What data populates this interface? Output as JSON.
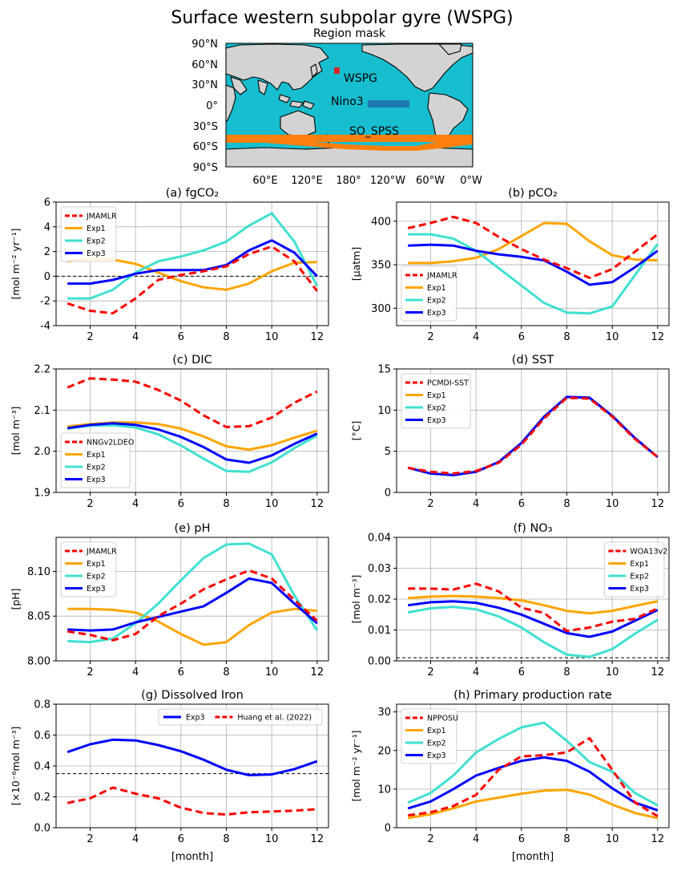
{
  "suptitle": "Surface western subpolar gyre (WSPG)",
  "map": {
    "title": "Region mask",
    "lat_ticks": [
      "90°N",
      "60°N",
      "30°N",
      "0°",
      "30°S",
      "60°S",
      "90°S"
    ],
    "lon_ticks": [
      "60°E",
      "120°E",
      "180°",
      "120°W",
      "60°W",
      "0°W"
    ],
    "region_labels": [
      "WSPG",
      "Nino3",
      "SO_SPSS"
    ],
    "colors": {
      "ocean": "#17becf",
      "land": "#d3d3d3",
      "wspg": "#d62728",
      "nino3": "#1f77b4",
      "so_spss": "#ff7f0e"
    }
  },
  "colors": {
    "obs": "#ff0000",
    "exp1": "#ffa500",
    "exp2": "#40e0d0",
    "exp3": "#0000ff",
    "grid": "#b0b0b0"
  },
  "xlabel": "[month]",
  "chart_data": [
    {
      "id": "a",
      "type": "line",
      "title": "(a) fgCO₂",
      "ylabel": "[mol m⁻² yr⁻¹]",
      "xlim": [
        0.5,
        12.5
      ],
      "ylim": [
        -4,
        6
      ],
      "yticks": [
        -4,
        -2,
        0,
        2,
        4,
        6
      ],
      "xticks": [
        2,
        4,
        6,
        8,
        10,
        12
      ],
      "yfmt": 0,
      "hline": 0,
      "legend": "upper-left",
      "x": [
        1,
        2,
        3,
        4,
        5,
        6,
        7,
        8,
        9,
        10,
        11,
        12
      ],
      "series": [
        {
          "name": "JMAMLR",
          "style": "obs",
          "values": [
            -2.2,
            -2.8,
            -3.0,
            -1.8,
            -0.3,
            0.1,
            0.4,
            0.8,
            1.8,
            2.4,
            1.2,
            -1.2
          ]
        },
        {
          "name": "Exp1",
          "style": "exp1",
          "values": [
            1.2,
            1.4,
            1.35,
            1.0,
            0.3,
            -0.4,
            -0.9,
            -1.1,
            -0.6,
            0.4,
            1.1,
            1.15
          ]
        },
        {
          "name": "Exp2",
          "style": "exp2",
          "values": [
            -1.8,
            -1.8,
            -1.1,
            0.3,
            1.2,
            1.6,
            2.1,
            2.8,
            4.1,
            5.1,
            2.8,
            -0.8
          ]
        },
        {
          "name": "Exp3",
          "style": "exp3",
          "values": [
            -0.6,
            -0.6,
            -0.3,
            0.2,
            0.5,
            0.5,
            0.5,
            0.9,
            2.1,
            2.9,
            1.9,
            0.0
          ]
        }
      ]
    },
    {
      "id": "b",
      "type": "line",
      "title": "(b) pCO₂",
      "ylabel": "[μatm]",
      "xlim": [
        0.5,
        12.5
      ],
      "ylim": [
        280,
        422
      ],
      "yticks": [
        300,
        350,
        400
      ],
      "xticks": [
        2,
        4,
        6,
        8,
        10,
        12
      ],
      "yfmt": 0,
      "hline": null,
      "legend": "lower-left",
      "x": [
        1,
        2,
        3,
        4,
        5,
        6,
        7,
        8,
        9,
        10,
        11,
        12
      ],
      "series": [
        {
          "name": "JMAMLR",
          "style": "obs",
          "values": [
            392,
            398,
            405,
            398,
            382,
            368,
            356,
            346,
            335,
            345,
            365,
            385
          ]
        },
        {
          "name": "Exp1",
          "style": "exp1",
          "values": [
            352,
            352,
            354,
            358,
            368,
            383,
            398,
            397,
            377,
            361,
            356,
            355
          ]
        },
        {
          "name": "Exp2",
          "style": "exp2",
          "values": [
            385,
            385,
            380,
            366,
            346,
            326,
            306,
            295,
            294,
            302,
            338,
            374
          ]
        },
        {
          "name": "Exp3",
          "style": "exp3",
          "values": [
            372,
            373,
            372,
            366,
            362,
            359,
            355,
            342,
            327,
            330,
            347,
            366
          ]
        }
      ]
    },
    {
      "id": "c",
      "type": "line",
      "title": "(c) DIC",
      "ylabel": "[mol m⁻³]",
      "xlim": [
        0.5,
        12.5
      ],
      "ylim": [
        1.9,
        2.2
      ],
      "yticks": [
        1.9,
        2.0,
        2.1,
        2.2
      ],
      "xticks": [
        2,
        4,
        6,
        8,
        10,
        12
      ],
      "yfmt": 1,
      "hline": null,
      "legend": "lower-left",
      "x": [
        1,
        2,
        3,
        4,
        5,
        6,
        7,
        8,
        9,
        10,
        11,
        12
      ],
      "series": [
        {
          "name": "NNGv2LDEO",
          "style": "obs",
          "values": [
            2.155,
            2.177,
            2.174,
            2.169,
            2.149,
            2.123,
            2.087,
            2.059,
            2.061,
            2.082,
            2.118,
            2.145
          ]
        },
        {
          "name": "Exp1",
          "style": "exp1",
          "values": [
            2.06,
            2.066,
            2.07,
            2.07,
            2.066,
            2.055,
            2.036,
            2.012,
            2.004,
            2.015,
            2.033,
            2.05
          ]
        },
        {
          "name": "Exp2",
          "style": "exp2",
          "values": [
            2.055,
            2.062,
            2.063,
            2.058,
            2.041,
            2.014,
            1.982,
            1.952,
            1.95,
            1.973,
            2.008,
            2.038
          ]
        },
        {
          "name": "Exp3",
          "style": "exp3",
          "values": [
            2.056,
            2.064,
            2.068,
            2.064,
            2.053,
            2.035,
            2.01,
            1.98,
            1.972,
            1.99,
            2.018,
            2.043
          ]
        }
      ]
    },
    {
      "id": "d",
      "type": "line",
      "title": "(d) SST",
      "ylabel": "[°C]",
      "xlim": [
        0.5,
        12.5
      ],
      "ylim": [
        0,
        15
      ],
      "yticks": [
        0,
        5,
        10,
        15
      ],
      "xticks": [
        2,
        4,
        6,
        8,
        10,
        12
      ],
      "yfmt": 0,
      "hline": 0,
      "legend": "upper-left",
      "x": [
        1,
        2,
        3,
        4,
        5,
        6,
        7,
        8,
        9,
        10,
        11,
        12
      ],
      "series": [
        {
          "name": "PCMDI-SST",
          "style": "obs",
          "values": [
            3.0,
            2.5,
            2.3,
            2.6,
            3.6,
            5.8,
            9.0,
            11.5,
            11.4,
            9.2,
            6.5,
            4.3
          ]
        },
        {
          "name": "Exp1",
          "style": "exp1",
          "values": [
            3.0,
            2.3,
            2.1,
            2.5,
            3.7,
            6.0,
            9.2,
            11.6,
            11.5,
            9.3,
            6.6,
            4.3
          ]
        },
        {
          "name": "Exp2",
          "style": "exp2",
          "values": [
            3.0,
            2.3,
            2.1,
            2.5,
            3.7,
            6.0,
            9.2,
            11.6,
            11.5,
            9.3,
            6.6,
            4.3
          ]
        },
        {
          "name": "Exp3",
          "style": "exp3",
          "values": [
            3.0,
            2.3,
            2.1,
            2.5,
            3.7,
            6.0,
            9.2,
            11.6,
            11.5,
            9.3,
            6.6,
            4.3
          ]
        }
      ]
    },
    {
      "id": "e",
      "type": "line",
      "title": "(e) pH",
      "ylabel": "[pH]",
      "xlim": [
        0.5,
        12.5
      ],
      "ylim": [
        8.0,
        8.138
      ],
      "yticks": [
        8.0,
        8.05,
        8.1
      ],
      "xticks": [
        2,
        4,
        6,
        8,
        10,
        12
      ],
      "yfmt": 2,
      "hline": null,
      "legend": "upper-left",
      "x": [
        1,
        2,
        3,
        4,
        5,
        6,
        7,
        8,
        9,
        10,
        11,
        12
      ],
      "series": [
        {
          "name": "JMAMLR",
          "style": "obs",
          "values": [
            8.033,
            8.029,
            8.023,
            8.03,
            8.05,
            8.064,
            8.08,
            8.091,
            8.101,
            8.092,
            8.068,
            8.045
          ]
        },
        {
          "name": "Exp1",
          "style": "exp1",
          "values": [
            8.058,
            8.058,
            8.057,
            8.054,
            8.044,
            8.03,
            8.018,
            8.021,
            8.04,
            8.054,
            8.058,
            8.056
          ]
        },
        {
          "name": "Exp2",
          "style": "exp2",
          "values": [
            8.022,
            8.021,
            8.025,
            8.042,
            8.064,
            8.09,
            8.115,
            8.13,
            8.131,
            8.119,
            8.073,
            8.034
          ]
        },
        {
          "name": "Exp3",
          "style": "exp3",
          "values": [
            8.035,
            8.034,
            8.035,
            8.043,
            8.049,
            8.055,
            8.061,
            8.076,
            8.092,
            8.087,
            8.064,
            8.042
          ]
        }
      ]
    },
    {
      "id": "f",
      "type": "line",
      "title": "(f) NO₃",
      "ylabel": "[mol m⁻³]",
      "xlim": [
        0.5,
        12.5
      ],
      "ylim": [
        0,
        0.04
      ],
      "yticks": [
        0,
        0.01,
        0.02,
        0.03,
        0.04
      ],
      "xticks": [
        2,
        4,
        6,
        8,
        10,
        12
      ],
      "yfmt": 2,
      "hline": 0.001,
      "legend": "upper-right",
      "x": [
        1,
        2,
        3,
        4,
        5,
        6,
        7,
        8,
        9,
        10,
        11,
        12
      ],
      "series": [
        {
          "name": "WOA13v2",
          "style": "obs",
          "values": [
            0.0234,
            0.0234,
            0.0231,
            0.025,
            0.0225,
            0.0172,
            0.0155,
            0.0097,
            0.0108,
            0.0127,
            0.0136,
            0.017
          ]
        },
        {
          "name": "Exp1",
          "style": "exp1",
          "values": [
            0.0203,
            0.0208,
            0.021,
            0.0208,
            0.0203,
            0.0196,
            0.018,
            0.0162,
            0.0154,
            0.0162,
            0.0178,
            0.0193
          ]
        },
        {
          "name": "Exp2",
          "style": "exp2",
          "values": [
            0.0157,
            0.017,
            0.0175,
            0.0167,
            0.0144,
            0.0108,
            0.006,
            0.002,
            0.0013,
            0.0038,
            0.0088,
            0.0133
          ]
        },
        {
          "name": "Exp3",
          "style": "exp3",
          "values": [
            0.018,
            0.019,
            0.0193,
            0.0188,
            0.0172,
            0.015,
            0.012,
            0.009,
            0.0078,
            0.0095,
            0.013,
            0.0165
          ]
        }
      ]
    },
    {
      "id": "g",
      "type": "line",
      "title": "(g) Dissolved Iron",
      "ylabel": "[×10⁻⁶mol m⁻³]",
      "xlim": [
        0.5,
        12.5
      ],
      "ylim": [
        0,
        0.8
      ],
      "yticks": [
        0,
        0.2,
        0.4,
        0.6,
        0.8
      ],
      "xticks": [
        2,
        4,
        6,
        8,
        10,
        12
      ],
      "yfmt": 1,
      "hline": 0.35,
      "legend": "top-right-row",
      "x": [
        1,
        2,
        3,
        4,
        5,
        6,
        7,
        8,
        9,
        10,
        11,
        12
      ],
      "series": [
        {
          "name": "Exp3",
          "style": "exp3",
          "values": [
            0.49,
            0.54,
            0.57,
            0.565,
            0.535,
            0.495,
            0.44,
            0.375,
            0.34,
            0.345,
            0.38,
            0.43
          ]
        },
        {
          "name": "Huang et al. (2022)",
          "style": "obs",
          "values": [
            0.16,
            0.19,
            0.26,
            0.22,
            0.19,
            0.13,
            0.095,
            0.085,
            0.1,
            0.105,
            0.11,
            0.12
          ]
        }
      ]
    },
    {
      "id": "h",
      "type": "line",
      "title": "(h) Primary production rate",
      "ylabel": "[mol m⁻² yr⁻¹]",
      "xlim": [
        0.5,
        12.5
      ],
      "ylim": [
        0,
        32
      ],
      "yticks": [
        0,
        10,
        20,
        30
      ],
      "xticks": [
        2,
        4,
        6,
        8,
        10,
        12
      ],
      "yfmt": 0,
      "hline": null,
      "legend": "upper-left",
      "x": [
        1,
        2,
        3,
        4,
        5,
        6,
        7,
        8,
        9,
        10,
        11,
        12
      ],
      "series": [
        {
          "name": "NPPOSU",
          "style": "obs",
          "values": [
            3.2,
            4.0,
            5.6,
            8.5,
            15.0,
            18.5,
            18.8,
            19.5,
            23.2,
            15.0,
            6.5,
            3.0
          ]
        },
        {
          "name": "Exp1",
          "style": "exp1",
          "values": [
            2.5,
            3.5,
            5.0,
            6.8,
            7.8,
            8.8,
            9.6,
            9.8,
            8.6,
            6.0,
            3.8,
            2.5
          ]
        },
        {
          "name": "Exp2",
          "style": "exp2",
          "values": [
            6.5,
            9.0,
            13.5,
            19.5,
            23.0,
            26.0,
            27.2,
            22.5,
            17.0,
            14.5,
            9.0,
            5.8
          ]
        },
        {
          "name": "Exp3",
          "style": "exp3",
          "values": [
            5.0,
            6.8,
            10.0,
            13.5,
            15.5,
            17.3,
            18.2,
            17.3,
            14.5,
            10.2,
            6.5,
            4.5
          ]
        }
      ]
    }
  ]
}
